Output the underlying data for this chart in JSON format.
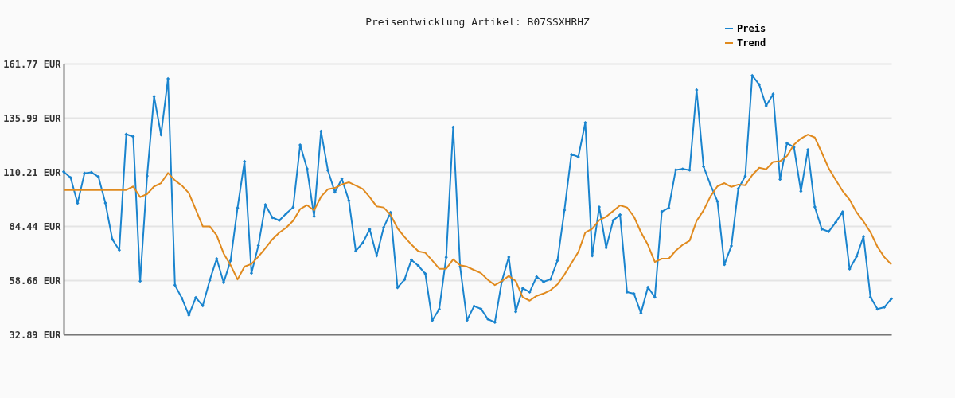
{
  "chart_data": {
    "type": "line",
    "title": "Preisentwicklung Artikel: B07SSXHRHZ",
    "categories": [
      null,
      null,
      null,
      null,
      null,
      null,
      null,
      null,
      null,
      null,
      null,
      null,
      null,
      null,
      null,
      null,
      null,
      null,
      null,
      null,
      null,
      null,
      null,
      null,
      null,
      null,
      null,
      null,
      null,
      null,
      null,
      null,
      null,
      null,
      null,
      null,
      null,
      null,
      null,
      null,
      null,
      null,
      null,
      null,
      null,
      null,
      null,
      null,
      null,
      null,
      null,
      null,
      null,
      null,
      null,
      null,
      null,
      null,
      null,
      null,
      null,
      null,
      null,
      null,
      null,
      null,
      null,
      null,
      null,
      null,
      null,
      null,
      null,
      null,
      null,
      null,
      null,
      null,
      null,
      null,
      null,
      null,
      null,
      null,
      null,
      null,
      null,
      null,
      null,
      null,
      null,
      null,
      null,
      null,
      null,
      null,
      null,
      null,
      null,
      null,
      null,
      null,
      null,
      null,
      null,
      null,
      null,
      null,
      null,
      null,
      null,
      null,
      null,
      null,
      null,
      null,
      null,
      null,
      null,
      null
    ],
    "series": [
      {
        "name": "Preis",
        "color": "#1a84ce",
        "marker": "diamond",
        "values": [
          110.3,
          107.5,
          95.3,
          109.6,
          110.0,
          107.9,
          95.4,
          78.1,
          73.0,
          128.2,
          127.0,
          58.2,
          108.3,
          146.2,
          127.9,
          154.6,
          56.3,
          50.1,
          42.0,
          50.4,
          46.5,
          58.6,
          68.9,
          57.5,
          68.0,
          93.1,
          115.2,
          62.0,
          75.2,
          94.6,
          88.5,
          87.1,
          90.4,
          93.4,
          123.1,
          111.7,
          89.0,
          129.6,
          110.9,
          100.6,
          106.9,
          96.6,
          72.6,
          76.4,
          82.9,
          70.3,
          83.7,
          90.9,
          55.1,
          58.9,
          68.3,
          65.5,
          61.7,
          39.5,
          44.9,
          69.6,
          131.5,
          65.1,
          39.6,
          46.3,
          45.0,
          40.1,
          38.6,
          58.2,
          69.7,
          43.6,
          54.8,
          53.0,
          60.3,
          57.9,
          59.1,
          68.0,
          92.0,
          118.6,
          117.4,
          133.7,
          70.3,
          93.5,
          74.1,
          87.1,
          89.8,
          53.0,
          52.2,
          43.0,
          55.3,
          50.6,
          91.3,
          93.1,
          111.2,
          111.6,
          111.1,
          149.3,
          112.8,
          104.0,
          96.2,
          66.1,
          75.0,
          102.3,
          108.2,
          156.1,
          151.9,
          141.7,
          147.3,
          106.7,
          123.9,
          122.0,
          101.0,
          120.8,
          93.5,
          83.0,
          81.8,
          86.2,
          91.2,
          64.0,
          69.9,
          79.5,
          50.6,
          44.9,
          45.8,
          49.8
        ]
      },
      {
        "name": "Trend",
        "color": "#e08a1e",
        "marker": "none",
        "values": [
          101.6,
          101.6,
          101.6,
          101.6,
          101.6,
          101.6,
          101.6,
          101.6,
          101.6,
          101.6,
          103.3,
          98.2,
          99.7,
          103.3,
          104.9,
          109.7,
          106.2,
          103.7,
          100.1,
          92.3,
          84.3,
          84.3,
          80.0,
          71.4,
          65.8,
          59.0,
          65.1,
          66.4,
          69.9,
          73.9,
          78.1,
          81.3,
          83.7,
          87.0,
          92.5,
          94.4,
          91.9,
          98.4,
          102.0,
          102.6,
          104.3,
          105.3,
          103.7,
          102.1,
          98.2,
          93.8,
          93.3,
          89.8,
          83.4,
          79.3,
          75.6,
          72.4,
          71.7,
          68.0,
          64.1,
          64.1,
          68.6,
          65.8,
          65.1,
          63.5,
          62.0,
          58.8,
          56.3,
          58.2,
          60.7,
          58.2,
          50.6,
          48.9,
          51.2,
          52.3,
          53.9,
          56.7,
          61.3,
          66.7,
          72.1,
          81.4,
          83.2,
          87.2,
          88.9,
          91.6,
          94.3,
          93.3,
          88.9,
          81.5,
          75.5,
          67.3,
          68.9,
          68.9,
          72.7,
          75.5,
          77.5,
          86.9,
          91.9,
          98.6,
          103.4,
          104.9,
          103.1,
          104.2,
          103.9,
          108.7,
          112.2,
          111.5,
          115.0,
          115.3,
          117.8,
          123.2,
          126.1,
          128.0,
          126.6,
          119.4,
          111.9,
          106.4,
          101.1,
          97.0,
          91.0,
          86.6,
          81.5,
          74.6,
          69.6,
          66.1
        ]
      }
    ],
    "ylim": [
      32.89,
      161.77
    ],
    "yticks": [
      {
        "value": 32.89,
        "label": "32.89 EUR"
      },
      {
        "value": 58.66,
        "label": "58.66 EUR"
      },
      {
        "value": 84.44,
        "label": "84.44 EUR"
      },
      {
        "value": 110.21,
        "label": "110.21 EUR"
      },
      {
        "value": 135.99,
        "label": "135.99 EUR"
      },
      {
        "value": 161.77,
        "label": "161.77 EUR"
      }
    ],
    "grid": "y",
    "legend": "top right",
    "tick_labels": "y",
    "line_style": "solid"
  }
}
